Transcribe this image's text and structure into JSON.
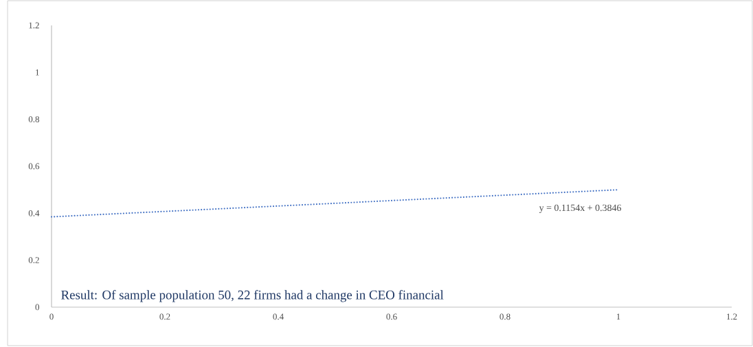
{
  "chart_data": {
    "type": "line",
    "x": [
      0,
      1
    ],
    "series": [
      {
        "color": "#4472c4",
        "values": [
          0.3846,
          0.5
        ],
        "line_style": "dotted",
        "marker": "none"
      }
    ],
    "xlim": [
      0,
      1.2
    ],
    "xticks": [
      0,
      0.2,
      0.4,
      0.6,
      0.8,
      1,
      1.2
    ],
    "ylim": [
      0,
      1.2
    ],
    "yticks": [
      0,
      0.2,
      0.4,
      0.6,
      0.8,
      1,
      1.2
    ],
    "grid": false,
    "legend": false,
    "annotations": [
      "y = 0.1154x + 0.3846",
      "Result: Of sample population 50, 22 firms had a change in CEO financial"
    ]
  }
}
